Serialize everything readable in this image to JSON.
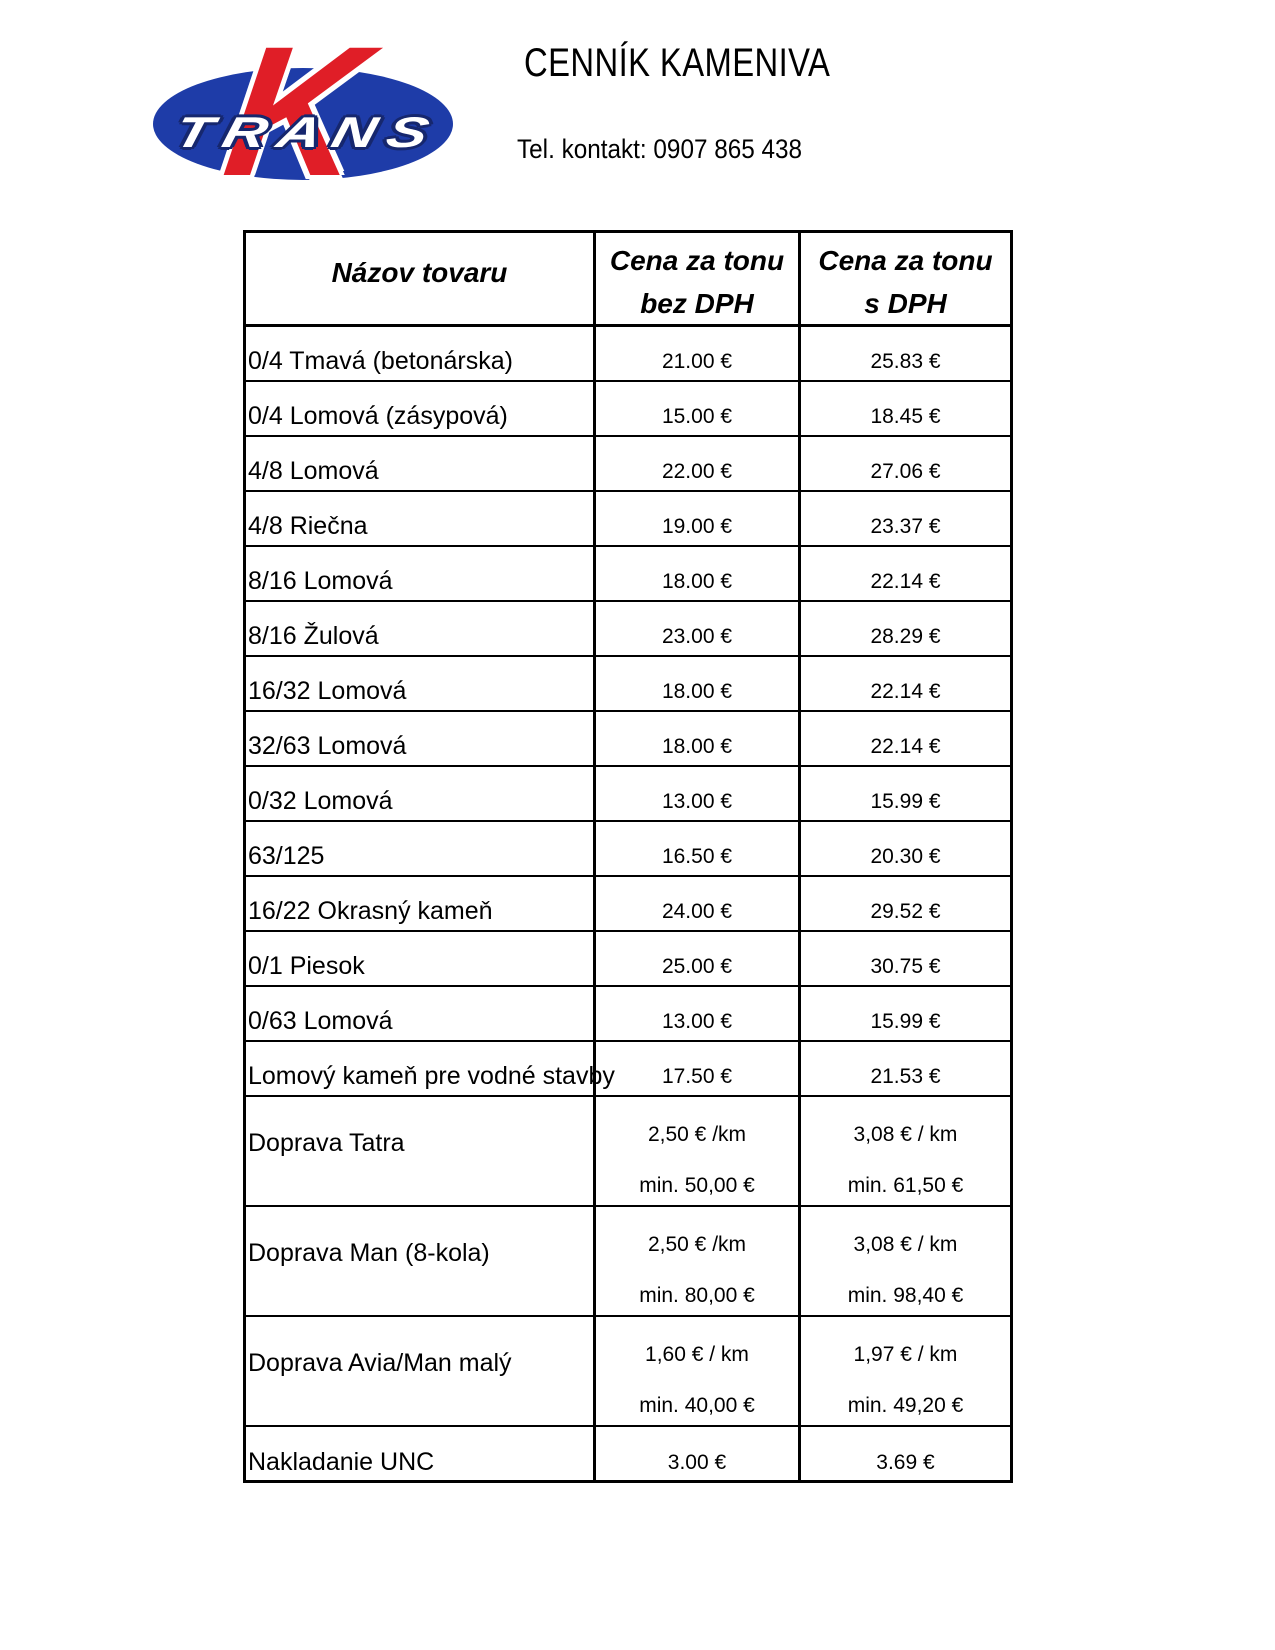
{
  "logo": {
    "k": "K",
    "trans": "TRANS"
  },
  "header": {
    "title": "CENNÍK KAMENIVA",
    "contact": "Tel. kontakt: 0907 865 438"
  },
  "colors": {
    "logo_blue": "#1e3ca8",
    "logo_red": "#e01e27",
    "logo_navy": "#16276e",
    "text": "#000000"
  },
  "table": {
    "header": {
      "name": "Názov tovaru",
      "bez": {
        "line1": "Cena za tonu",
        "line2": "bez DPH"
      },
      "s": {
        "line1": "Cena za tonu",
        "line2": "s DPH"
      }
    },
    "rows": [
      {
        "name": "0/4 Tmavá (betonárska)",
        "bez": [
          "21.00 €"
        ],
        "s": [
          "25.83 €"
        ]
      },
      {
        "name": "0/4 Lomová (zásypová)",
        "bez": [
          "15.00 €"
        ],
        "s": [
          "18.45 €"
        ]
      },
      {
        "name": "4/8 Lomová",
        "bez": [
          "22.00 €"
        ],
        "s": [
          "27.06 €"
        ]
      },
      {
        "name": "4/8 Riečna",
        "bez": [
          "19.00 €"
        ],
        "s": [
          "23.37 €"
        ]
      },
      {
        "name": "8/16 Lomová",
        "bez": [
          "18.00 €"
        ],
        "s": [
          "22.14 €"
        ]
      },
      {
        "name": "8/16 Žulová",
        "bez": [
          "23.00 €"
        ],
        "s": [
          "28.29 €"
        ]
      },
      {
        "name": "16/32 Lomová",
        "bez": [
          "18.00 €"
        ],
        "s": [
          "22.14 €"
        ]
      },
      {
        "name": "32/63 Lomová",
        "bez": [
          "18.00 €"
        ],
        "s": [
          "22.14 €"
        ]
      },
      {
        "name": "0/32 Lomová",
        "bez": [
          "13.00 €"
        ],
        "s": [
          "15.99 €"
        ]
      },
      {
        "name": "63/125",
        "bez": [
          "16.50 €"
        ],
        "s": [
          "20.30 €"
        ]
      },
      {
        "name": "16/22 Okrasný kameň",
        "bez": [
          "24.00 €"
        ],
        "s": [
          "29.52 €"
        ]
      },
      {
        "name": "0/1 Piesok",
        "bez": [
          "25.00 €"
        ],
        "s": [
          "30.75 €"
        ]
      },
      {
        "name": "0/63 Lomová",
        "bez": [
          "13.00 €"
        ],
        "s": [
          "15.99 €"
        ]
      },
      {
        "name": "Lomový kameň pre vodné stavby",
        "bez": [
          "17.50 €"
        ],
        "s": [
          "21.53 €"
        ]
      },
      {
        "name": "Doprava Tatra",
        "bez": [
          "2,50 € /km",
          "min. 50,00 €"
        ],
        "s": [
          "3,08 € / km",
          "min. 61,50 €"
        ]
      },
      {
        "name": "Doprava Man (8-kola)",
        "bez": [
          "2,50 € /km",
          "min. 80,00 €"
        ],
        "s": [
          "3,08 € / km",
          "min. 98,40 €"
        ]
      },
      {
        "name": "Doprava Avia/Man malý",
        "bez": [
          "1,60 € / km",
          "min. 40,00 €"
        ],
        "s": [
          "1,97 € / km",
          "min. 49,20 €"
        ]
      },
      {
        "name": "Nakladanie UNC",
        "bez": [
          "3.00 €"
        ],
        "s": [
          "3.69 €"
        ]
      }
    ]
  }
}
